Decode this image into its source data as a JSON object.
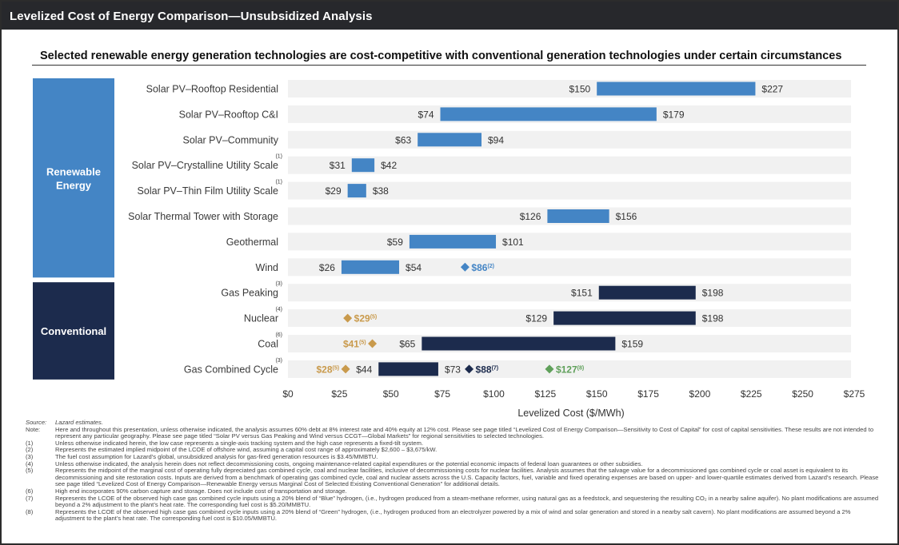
{
  "header": {
    "title": "Levelized Cost of Energy Comparison—Unsubsidized Analysis"
  },
  "subtitle": "Selected renewable energy generation technologies are cost-competitive with conventional generation technologies under certain circumstances",
  "colors": {
    "renewable": "#4485c5",
    "conventional": "#1c2b4d",
    "gold": "#c99a4c",
    "blue_hydrogen": "#1c2b4d",
    "green_hydrogen": "#5fa05a",
    "row_bg": "#f1f1f1",
    "title_bg": "#27282c"
  },
  "chart_data": {
    "type": "bar",
    "orientation": "horizontal-range",
    "xlabel": "Levelized Cost ($/MWh)",
    "xlim": [
      0,
      275
    ],
    "xticks": [
      "$0",
      "$25",
      "$50",
      "$75",
      "$100",
      "$125",
      "$150",
      "$175",
      "$200",
      "$225",
      "$250",
      "$275"
    ],
    "xtick_values": [
      0,
      25,
      50,
      75,
      100,
      125,
      150,
      175,
      200,
      225,
      250,
      275
    ],
    "groups": [
      {
        "name": "Renewable Energy",
        "line1": "Renewable",
        "line2": "Energy",
        "color": "#4485c5",
        "rows": [
          0,
          7
        ]
      },
      {
        "name": "Conventional",
        "line1": "Conventional",
        "line2": "",
        "color": "#1c2b4d",
        "rows": [
          8,
          11
        ]
      }
    ],
    "rows": [
      {
        "label": "Solar PV–Rooftop Residential",
        "sup": "",
        "low": 150,
        "high": 227,
        "low_label": "$150",
        "high_label": "$227",
        "group": "renewable",
        "markers": []
      },
      {
        "label": "Solar PV–Rooftop C&I",
        "sup": "",
        "low": 74,
        "high": 179,
        "low_label": "$74",
        "high_label": "$179",
        "group": "renewable",
        "markers": []
      },
      {
        "label": "Solar PV–Community",
        "sup": "",
        "low": 63,
        "high": 94,
        "low_label": "$63",
        "high_label": "$94",
        "group": "renewable",
        "markers": []
      },
      {
        "label": "Solar PV–Crystalline Utility Scale",
        "sup": "(1)",
        "low": 31,
        "high": 42,
        "low_label": "$31",
        "high_label": "$42",
        "group": "renewable",
        "markers": []
      },
      {
        "label": "Solar PV–Thin Film Utility Scale",
        "sup": "(1)",
        "low": 29,
        "high": 38,
        "low_label": "$29",
        "high_label": "$38",
        "group": "renewable",
        "markers": []
      },
      {
        "label": "Solar Thermal Tower with Storage",
        "sup": "",
        "low": 126,
        "high": 156,
        "low_label": "$126",
        "high_label": "$156",
        "group": "renewable",
        "markers": []
      },
      {
        "label": "Geothermal",
        "sup": "",
        "low": 59,
        "high": 101,
        "low_label": "$59",
        "high_label": "$101",
        "group": "renewable",
        "markers": []
      },
      {
        "label": "Wind",
        "sup": "",
        "low": 26,
        "high": 54,
        "low_label": "$26",
        "high_label": "$54",
        "group": "renewable",
        "markers": [
          {
            "value": 86,
            "text": "$86",
            "sup": "(2)",
            "color": "#4485c5",
            "side": "right"
          }
        ]
      },
      {
        "label": "Gas Peaking",
        "sup": "(3)",
        "low": 151,
        "high": 198,
        "low_label": "$151",
        "high_label": "$198",
        "group": "conventional",
        "markers": []
      },
      {
        "label": "Nuclear",
        "sup": "(4)",
        "low": 129,
        "high": 198,
        "low_label": "$129",
        "high_label": "$198",
        "group": "conventional",
        "markers": [
          {
            "value": 29,
            "text": "$29",
            "sup": "(5)",
            "color": "#c99a4c",
            "side": "right"
          }
        ]
      },
      {
        "label": "Coal",
        "sup": "(6)",
        "low": 65,
        "high": 159,
        "low_label": "$65",
        "high_label": "$159",
        "group": "conventional",
        "markers": [
          {
            "value": 41,
            "text": "$41",
            "sup": "(5)",
            "color": "#c99a4c",
            "side": "left"
          }
        ]
      },
      {
        "label": "Gas Combined Cycle",
        "sup": "(3)",
        "low": 44,
        "high": 73,
        "low_label": "$44",
        "high_label": "$73",
        "group": "conventional",
        "markers": [
          {
            "value": 28,
            "text": "$28",
            "sup": "(5)",
            "color": "#c99a4c",
            "side": "left"
          },
          {
            "value": 88,
            "text": "$88",
            "sup": "(7)",
            "color": "#1c2b4d",
            "side": "right"
          },
          {
            "value": 127,
            "text": "$127",
            "sup": "(8)",
            "color": "#5fa05a",
            "side": "right"
          }
        ]
      }
    ]
  },
  "notes": {
    "source_key": "Source:",
    "source_text": "Lazard estimates.",
    "note_key": "Note:",
    "note_text": "Here and throughout this presentation, unless otherwise indicated, the analysis assumes 60% debt at 8% interest rate and 40% equity at 12% cost. Please see page titled “Levelized Cost of Energy Comparison—Sensitivity to Cost of Capital” for cost of capital sensitivities. These results are not intended to represent any particular geography. Please see page titled “Solar PV versus Gas Peaking and Wind versus CCGT—Global Markets” for regional sensitivities to selected technologies.",
    "items": [
      {
        "key": "(1)",
        "text": "Unless otherwise indicated herein, the low case represents a single-axis tracking system and the high case represents a fixed-tilt system."
      },
      {
        "key": "(2)",
        "text": "Represents the estimated implied midpoint of the LCOE of offshore wind, assuming a capital cost range of approximately $2,600 – $3,675/kW."
      },
      {
        "key": "(3)",
        "text": "The fuel cost assumption for Lazard’s global, unsubsidized analysis for gas-fired generation resources is $3.45/MMBTU."
      },
      {
        "key": "(4)",
        "text": "Unless otherwise indicated, the analysis herein does not reflect decommissioning costs, ongoing maintenance-related capital expenditures or the potential economic impacts of federal loan guarantees or other subsidies."
      },
      {
        "key": "(5)",
        "text": "Represents the midpoint of the marginal cost of operating fully depreciated gas combined cycle, coal and nuclear facilities, inclusive of decommissioning costs for nuclear facilities. Analysis assumes that the salvage value for a decommissioned gas combined cycle or coal asset is equivalent to its decommissioning and site restoration costs. Inputs are derived from a benchmark of operating gas combined cycle, coal and nuclear assets across the U.S. Capacity factors, fuel, variable and fixed operating expenses are based on upper- and lower-quartile estimates derived from Lazard’s research. Please see page titled “Levelized Cost of Energy Comparison—Renewable Energy versus Marginal Cost of Selected Existing Conventional Generation” for additional details."
      },
      {
        "key": "(6)",
        "text": "High end incorporates 90% carbon capture and storage. Does not include cost of transportation and storage."
      },
      {
        "key": "(7)",
        "text": "Represents the LCOE of the observed high case gas combined cycle inputs using a 20% blend of “Blue” hydrogen, (i.e., hydrogen produced from a steam-methane reformer, using natural gas as a feedstock, and sequestering the resulting CO₂ in a nearby saline aquifer). No plant modifications are assumed beyond a 2% adjustment to the plant’s heat rate. The corresponding fuel cost is $5.20/MMBTU."
      },
      {
        "key": "(8)",
        "text": "Represents the LCOE of the observed high case gas combined cycle inputs using a 20% blend of “Green” hydrogen, (i.e., hydrogen produced from an electrolyzer powered by a mix of wind and solar generation and stored in a nearby salt cavern). No plant modifications are assumed beyond a 2% adjustment to the plant’s heat rate. The corresponding fuel cost is $10.05/MMBTU."
      }
    ]
  }
}
